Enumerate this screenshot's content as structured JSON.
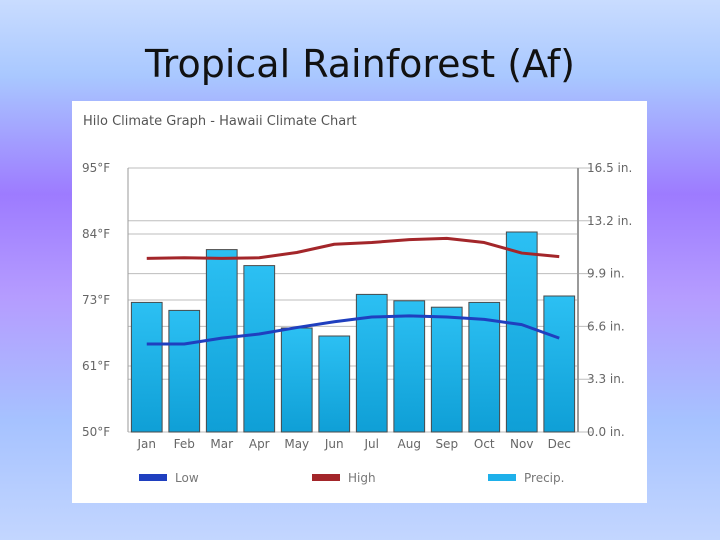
{
  "slide": {
    "title": "Tropical Rainforest (Af)"
  },
  "colors": {
    "low": "#1f3fbf",
    "high": "#a3262a",
    "precip": "#1eb0ea",
    "grid": "#bdbdbd"
  },
  "chart_data": {
    "type": "bar",
    "title": "Hilo Climate Graph - Hawaii Climate Chart",
    "categories": [
      "Jan",
      "Feb",
      "Mar",
      "Apr",
      "May",
      "Jun",
      "Jul",
      "Aug",
      "Sep",
      "Oct",
      "Nov",
      "Dec"
    ],
    "series": [
      {
        "name": "Precip.",
        "type": "bar",
        "axis": "right",
        "unit": "in.",
        "values": [
          8.1,
          7.6,
          11.4,
          10.4,
          6.5,
          6.0,
          8.6,
          8.2,
          7.8,
          8.1,
          12.5,
          8.5
        ]
      },
      {
        "name": "Low",
        "type": "line",
        "axis": "left",
        "unit": "°F",
        "values": [
          65,
          65,
          66,
          66.7,
          67.8,
          68.8,
          69.6,
          69.8,
          69.6,
          69.2,
          68.3,
          66
        ]
      },
      {
        "name": "High",
        "type": "line",
        "axis": "left",
        "unit": "°F",
        "values": [
          79.6,
          79.7,
          79.6,
          79.7,
          80.6,
          82,
          82.3,
          82.8,
          83,
          82.3,
          80.5,
          79.9
        ]
      }
    ],
    "y_left": {
      "ticks": [
        "50°F",
        "61°F",
        "73°F",
        "84°F",
        "95°F"
      ],
      "ylim": [
        50,
        95
      ]
    },
    "y_right": {
      "ticks": [
        "0.0 in.",
        "3.3 in.",
        "6.6 in.",
        "9.9 in.",
        "13.2 in.",
        "16.5 in."
      ],
      "ylim": [
        0,
        16.5
      ]
    },
    "legend": [
      {
        "label": "Low",
        "series": "Low"
      },
      {
        "label": "High",
        "series": "High"
      },
      {
        "label": "Precip.",
        "series": "Precip."
      }
    ],
    "legend_position": "bottom",
    "grid": true
  }
}
